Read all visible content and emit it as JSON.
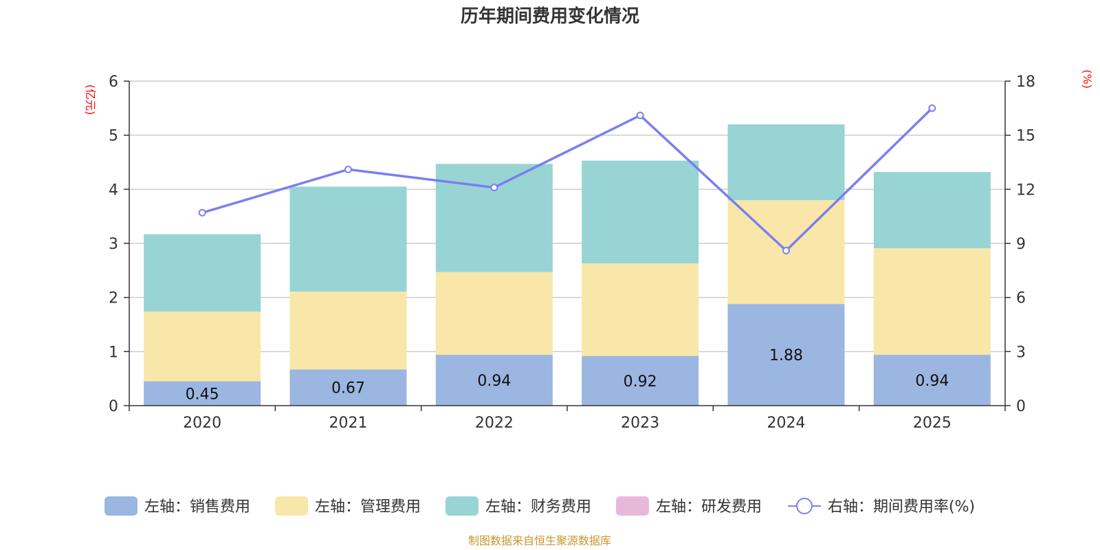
{
  "chart_data": {
    "type": "bar",
    "stacked": true,
    "title": "历年期间费用变化情况",
    "left_unit": "(亿元)",
    "right_unit": "(%)",
    "categories": [
      "2020",
      "2021",
      "2022",
      "2023",
      "2024",
      "2025"
    ],
    "left_ylim": [
      0,
      6
    ],
    "left_ticks": [
      "0",
      "1",
      "2",
      "3",
      "4",
      "5",
      "6"
    ],
    "right_ylim": [
      0,
      18
    ],
    "right_ticks": [
      "0",
      "3",
      "6",
      "9",
      "12",
      "15",
      "18"
    ],
    "series": [
      {
        "name": "左轴：销售费用",
        "type": "bar",
        "color": "#9bb6e0",
        "values": [
          0.45,
          0.67,
          0.94,
          0.92,
          1.88,
          0.94
        ],
        "labels": [
          "0.45",
          "0.67",
          "0.94",
          "0.92",
          "1.88",
          "0.94"
        ]
      },
      {
        "name": "左轴：管理费用",
        "type": "bar",
        "color": "#f8e7a8",
        "values": [
          1.29,
          1.44,
          1.53,
          1.71,
          1.92,
          1.97
        ]
      },
      {
        "name": "左轴：财务费用",
        "type": "bar",
        "color": "#98d4d4",
        "values": [
          1.43,
          1.94,
          2.0,
          1.9,
          1.4,
          1.41
        ]
      },
      {
        "name": "左轴：研发费用",
        "type": "bar",
        "color": "#e8b8da",
        "values": [
          0,
          0,
          0,
          0,
          0,
          0
        ]
      },
      {
        "name": "右轴：期间费用率(%)",
        "type": "line",
        "color": "#7b7ff0",
        "values": [
          10.7,
          13.1,
          12.1,
          16.1,
          8.6,
          16.5
        ]
      }
    ],
    "grid": true,
    "legend_position": "bottom"
  },
  "source_note": "制图数据来自恒生聚源数据库"
}
